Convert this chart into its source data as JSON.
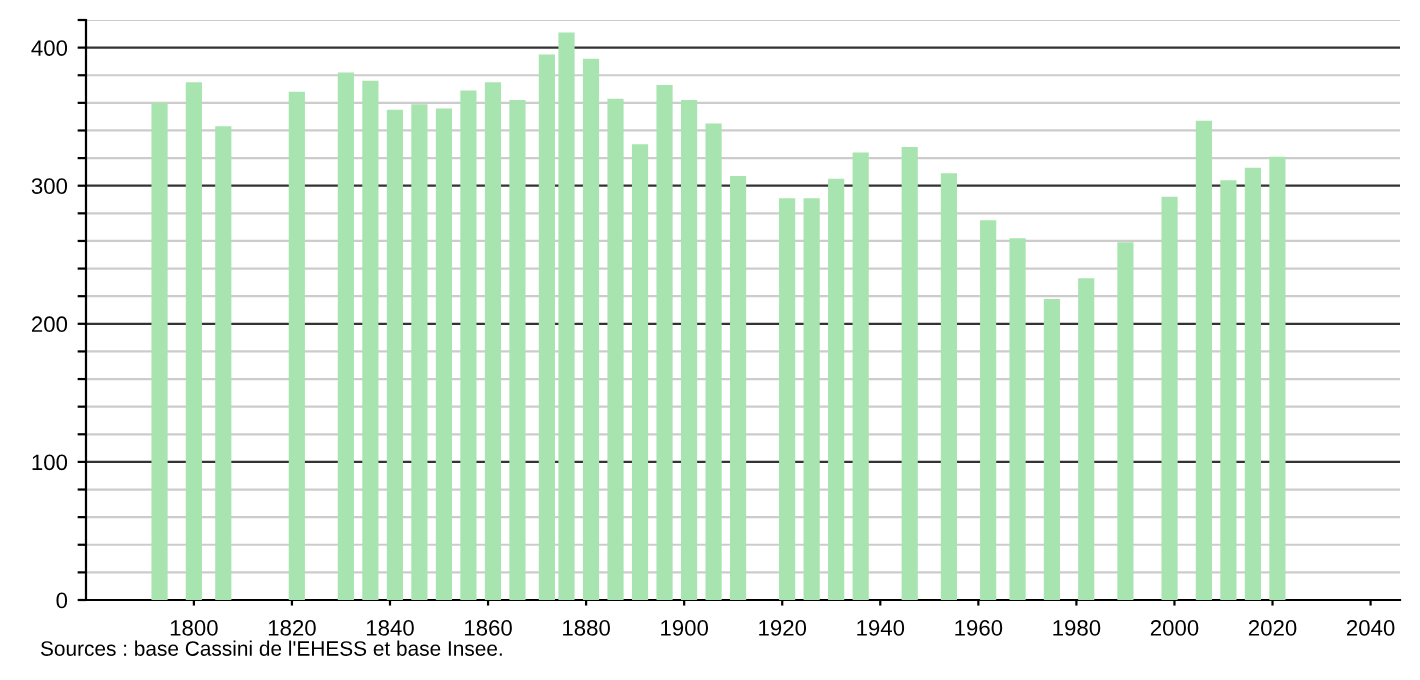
{
  "chart_data": {
    "type": "bar",
    "x": [
      1793,
      1800,
      1806,
      1821,
      1831,
      1836,
      1841,
      1846,
      1851,
      1856,
      1861,
      1866,
      1872,
      1876,
      1881,
      1886,
      1891,
      1896,
      1901,
      1906,
      1911,
      1921,
      1926,
      1931,
      1936,
      1946,
      1954,
      1962,
      1968,
      1975,
      1982,
      1990,
      1999,
      2006,
      2011,
      2016,
      2021
    ],
    "values": [
      360,
      375,
      343,
      368,
      382,
      376,
      355,
      359,
      356,
      369,
      375,
      362,
      395,
      411,
      392,
      363,
      330,
      373,
      362,
      345,
      307,
      291,
      291,
      305,
      324,
      328,
      309,
      275,
      262,
      218,
      233,
      259,
      292,
      347,
      304,
      313,
      321
    ],
    "color": "#a8e4b0",
    "xlim": [
      1778,
      2046
    ],
    "xticks": [
      1800,
      1820,
      1840,
      1860,
      1880,
      1900,
      1920,
      1940,
      1960,
      1980,
      2000,
      2020,
      2040
    ],
    "ylim": [
      0,
      420
    ],
    "yticks": [
      0,
      {
        "value": 20,
        "label": null
      },
      {
        "value": 40,
        "label": null
      },
      {
        "value": 60,
        "label": null
      },
      {
        "value": 80,
        "label": null
      },
      100,
      {
        "value": 120,
        "label": null
      },
      {
        "value": 140,
        "label": null
      },
      {
        "value": 160,
        "label": null
      },
      {
        "value": 180,
        "label": null
      },
      200,
      {
        "value": 220,
        "label": null
      },
      {
        "value": 240,
        "label": null
      },
      {
        "value": 260,
        "label": null
      },
      {
        "value": 280,
        "label": null
      },
      300,
      {
        "value": 320,
        "label": null
      },
      {
        "value": 340,
        "label": null
      },
      {
        "value": 360,
        "label": null
      },
      {
        "value": 380,
        "label": null
      },
      400,
      {
        "value": 420,
        "label": null
      }
    ],
    "grid": "y",
    "annotations": [
      "Sources : base Cassini de l'EHESS et base Insee."
    ]
  }
}
